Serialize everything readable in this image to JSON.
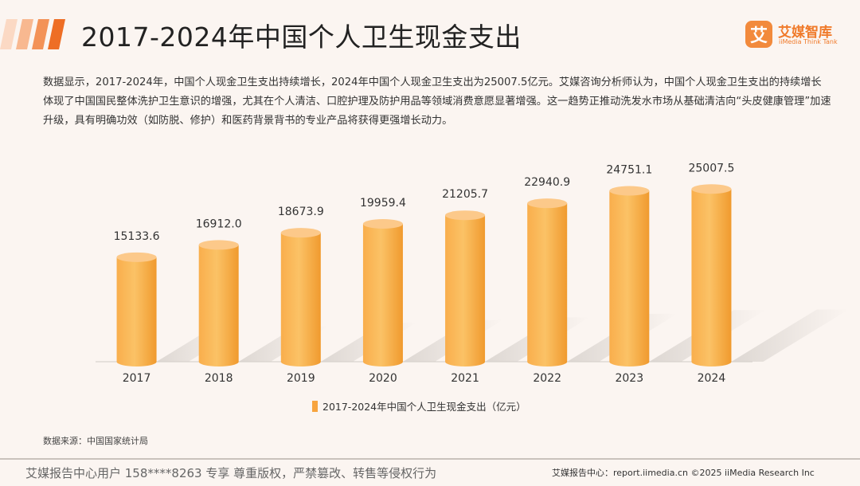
{
  "header": {
    "title": "2017-2024年中国个人卫生现金支出",
    "logo_name": "艾媒智库",
    "logo_sub": "iiMedia Think Tank",
    "logo_mark": "艾"
  },
  "description": "数据显示，2017-2024年，中国个人现金卫生支出持续增长，2024年中国个人现金卫生支出为25007.5亿元。艾媒咨询分析师认为，中国个人现金卫生支出的持续增长体现了中国国民整体洗护卫生意识的增强，尤其在个人清洁、口腔护理及防护用品等领域消费意愿显著增强。这一趋势正推动洗发水市场从基础清洁向“头皮健康管理”加速升级，具有明确功效（如防脱、修护）和医药背景背书的专业产品将获得更强增长动力。",
  "chart_data": {
    "type": "bar",
    "categories": [
      "2017",
      "2018",
      "2019",
      "2020",
      "2021",
      "2022",
      "2023",
      "2024"
    ],
    "series": [
      {
        "name": "2017-2024年中国个人卫生现金支出（亿元）",
        "values": [
          15133.6,
          16912.0,
          18673.9,
          19959.4,
          21205.7,
          22940.9,
          24751.1,
          25007.5
        ],
        "labels": [
          "15133.6",
          "16912.0",
          "18673.9",
          "19959.4",
          "21205.7",
          "22940.9",
          "24751.1",
          "25007.5"
        ]
      }
    ],
    "ylim": [
      0,
      30000
    ],
    "grid": false,
    "legend_position": "bottom",
    "colors": {
      "bar": "#f7a43e",
      "bar_light": "#fbc36f",
      "bar_dark": "#ec8a22"
    }
  },
  "legend": {
    "label": "2017-2024年中国个人卫生现金支出（亿元）"
  },
  "source": "数据来源：中国国家统计局",
  "footer": {
    "left": "艾媒报告中心用户 158****8263 专享 尊重版权，严禁篡改、转售等侵权行为",
    "right": "艾媒报告中心：report.iimedia.cn ©2025 iiMedia Research Inc"
  }
}
